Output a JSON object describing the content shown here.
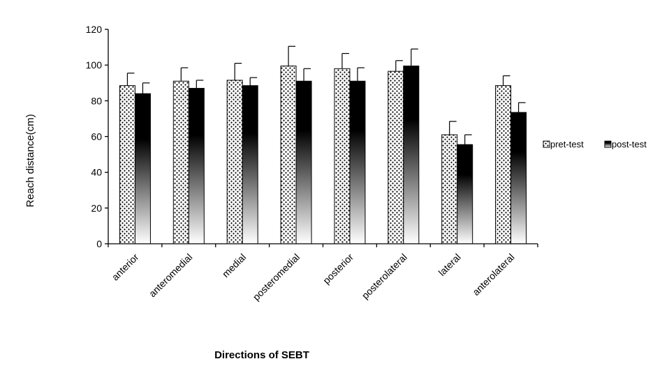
{
  "chart_data": {
    "type": "bar",
    "title": "",
    "xlabel": "Directions of SEBT",
    "ylabel": "Reach distance(cm)",
    "ylim": [
      0,
      120
    ],
    "yticks": [
      0,
      20,
      40,
      60,
      80,
      100,
      120
    ],
    "grid": false,
    "legend_position": "right",
    "categories": [
      "anterior",
      "anteromedial",
      "medial",
      "posteromedial",
      "posterior",
      "posterolateral",
      "lateral",
      "anterolateral"
    ],
    "series": [
      {
        "name": "pret-test",
        "pattern": "dotted",
        "values": [
          88.5,
          91,
          91.5,
          99.5,
          98,
          96.5,
          61,
          88.5
        ],
        "errors": [
          7,
          7.5,
          9.5,
          11,
          8.5,
          6,
          7.5,
          5.5
        ]
      },
      {
        "name": "post-test",
        "pattern": "gradient",
        "values": [
          84,
          87,
          88.5,
          91,
          91,
          99.5,
          55.5,
          73.5
        ],
        "errors": [
          6,
          4.5,
          4.5,
          7,
          7.5,
          9.5,
          5.5,
          5.5
        ]
      }
    ]
  },
  "colors": {
    "axis": "#000000",
    "bar_outline": "#000000",
    "dotted_fill": "#ffffff",
    "dotted_dots": "#000000",
    "gradient_top": "#000000",
    "gradient_bottom": "#ffffff"
  }
}
